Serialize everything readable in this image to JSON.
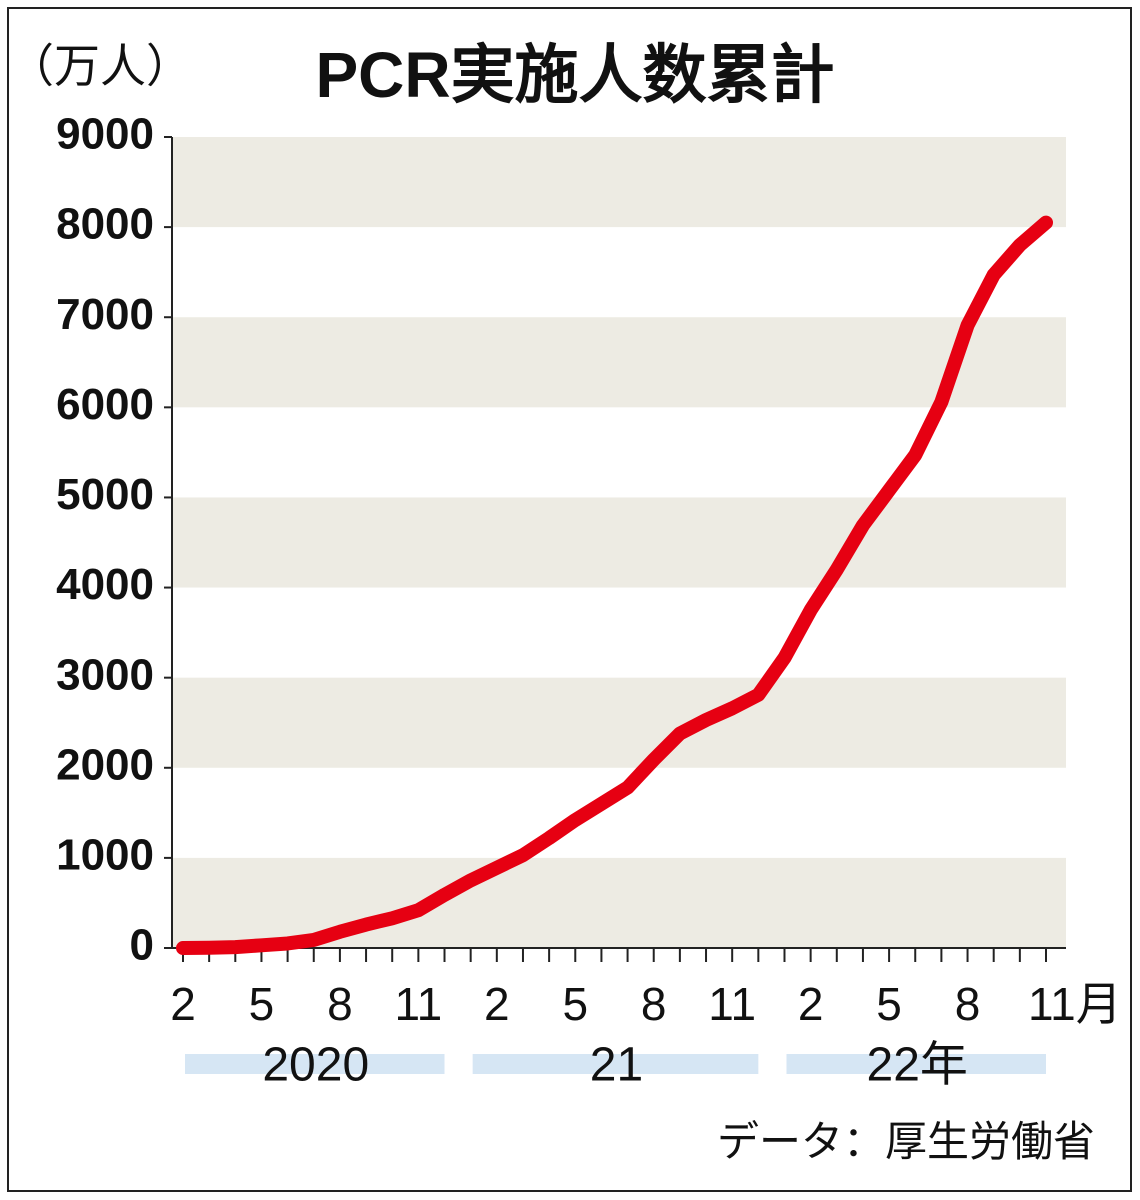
{
  "chart_data": {
    "type": "line",
    "title": "PCR実施人数累計",
    "unit_label": "（万人）",
    "categories": [
      "2",
      null,
      null,
      "5",
      null,
      null,
      "8",
      null,
      null,
      "11",
      null,
      null,
      "2",
      null,
      null,
      "5",
      null,
      null,
      "8",
      null,
      null,
      "11",
      null,
      null,
      "2",
      null,
      null,
      "5",
      null,
      null,
      "8",
      null,
      null,
      "11月"
    ],
    "year_labels": [
      "2020",
      "21",
      "22年"
    ],
    "values": [
      0,
      3,
      10,
      30,
      50,
      90,
      180,
      260,
      330,
      420,
      590,
      750,
      890,
      1030,
      1220,
      1420,
      1600,
      1780,
      2090,
      2380,
      2530,
      2660,
      2810,
      3220,
      3750,
      4200,
      4690,
      5080,
      5470,
      6060,
      6910,
      7470,
      7800,
      8050
    ],
    "color": "#e60012",
    "band_color": "#edebe3",
    "year_bar_color": "#d6e6f4",
    "ylim": [
      0,
      9000
    ],
    "yticks": [
      0,
      1000,
      2000,
      3000,
      4000,
      5000,
      6000,
      7000,
      8000,
      9000
    ],
    "grid": true,
    "source": "データ：厚生労働省"
  }
}
